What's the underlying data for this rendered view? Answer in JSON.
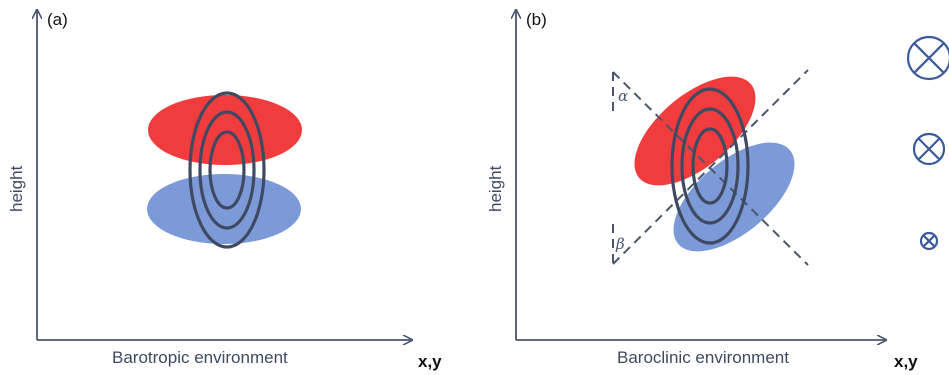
{
  "panel_a": {
    "label": "(a)",
    "ylabel": "height",
    "xlabel": "Barotropic environment",
    "axis_end": "x,y"
  },
  "panel_b": {
    "label": "(b)",
    "ylabel": "height",
    "xlabel": "Baroclinic environment",
    "axis_end": "x,y",
    "angle_alpha": "α",
    "angle_beta": "β"
  },
  "colors": {
    "warm_anomaly": "#f03c3c",
    "cold_anomaly": "#7d9ad8",
    "contour": "#3f4a62",
    "axis": "#4a5570",
    "marker": "#3a5a9a"
  },
  "icons": [
    "into-page-circle-large-icon",
    "into-page-circle-medium-icon",
    "into-page-circle-small-icon"
  ]
}
